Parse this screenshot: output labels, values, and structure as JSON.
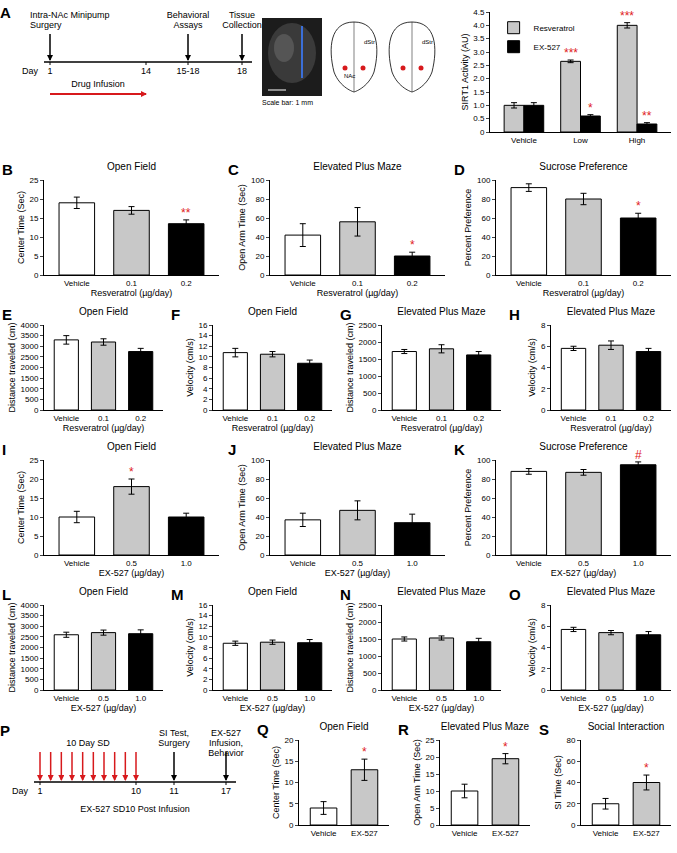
{
  "chart_data": [
    {
      "type": "bar",
      "y_label": "SIRT1 Activity (AU)",
      "categories": [
        "Vehicle",
        "Low",
        "High"
      ],
      "series": [
        {
          "name": "Resveratrol",
          "color": "#c8c8c8",
          "values": [
            1.0,
            2.65,
            4.0
          ],
          "errors": [
            0.1,
            0.05,
            0.1
          ]
        },
        {
          "name": "EX-527",
          "color": "#000000",
          "values": [
            1.0,
            0.6,
            0.3
          ],
          "errors": [
            0.1,
            0.05,
            0.05
          ]
        }
      ],
      "legend": "top-left",
      "ylim": [
        0,
        4.5
      ],
      "yticks": [
        0,
        0.5,
        {
          "value": 1,
          "label": "1.0"
        },
        1.5,
        {
          "value": 2,
          "label": "2.0"
        },
        2.5,
        {
          "value": 3,
          "label": "3.0"
        },
        3.5,
        {
          "value": 4,
          "label": "4.0"
        },
        4.5
      ],
      "annotations": [
        {
          "series": "Resveratrol",
          "category": "Low",
          "text": "***"
        },
        {
          "series": "Resveratrol",
          "category": "High",
          "text": "***"
        },
        {
          "series": "EX-527",
          "category": "Low",
          "text": "*"
        },
        {
          "series": "EX-527",
          "category": "High",
          "text": "**"
        }
      ]
    },
    {
      "panel": "B",
      "type": "bar",
      "title": "Open Field",
      "y_label": "Center Time (Sec)",
      "x_label": "Resveratrol (µg/day)",
      "categories": [
        "Vehicle",
        "0.1",
        "0.2"
      ],
      "values": [
        19,
        17,
        13.5
      ],
      "errors": [
        1.5,
        1,
        1
      ],
      "colors": [
        "#ffffff",
        "#c8c8c8",
        "#000000"
      ],
      "ylim": [
        0,
        25
      ],
      "yticks": [
        0,
        5,
        10,
        15,
        20,
        25
      ],
      "annotations": [
        {
          "category": "0.2",
          "text": "**"
        }
      ]
    },
    {
      "panel": "C",
      "type": "bar",
      "title": "Elevated Plus Maze",
      "y_label": "Open Arm Time (Sec)",
      "x_label": "Resveratrol (µg/day)",
      "categories": [
        "Vehicle",
        "0.1",
        "0.2"
      ],
      "values": [
        42,
        56,
        20
      ],
      "errors": [
        12,
        15,
        4
      ],
      "colors": [
        "#ffffff",
        "#c8c8c8",
        "#000000"
      ],
      "ylim": [
        0,
        100
      ],
      "yticks": [
        0,
        20,
        40,
        60,
        80,
        100
      ],
      "annotations": [
        {
          "category": "0.2",
          "text": "*"
        }
      ]
    },
    {
      "panel": "D",
      "type": "bar",
      "title": "Sucrose Preference",
      "y_label": "Percent Preference",
      "x_label": "Resveratrol (µg/day)",
      "categories": [
        "Vehicle",
        "0.1",
        "0.2"
      ],
      "values": [
        92,
        80,
        60
      ],
      "errors": [
        4,
        6,
        5
      ],
      "colors": [
        "#ffffff",
        "#c8c8c8",
        "#000000"
      ],
      "ylim": [
        0,
        100
      ],
      "yticks": [
        0,
        20,
        40,
        60,
        80,
        100
      ],
      "annotations": [
        {
          "category": "0.2",
          "text": "*"
        }
      ]
    },
    {
      "panel": "E",
      "type": "bar",
      "title": "Open Field",
      "y_label": "Distance traveled (cm)",
      "x_label": "Resveratrol (µg/day)",
      "categories": [
        "Vehicle",
        "0.1",
        "0.2"
      ],
      "values": [
        3300,
        3200,
        2750
      ],
      "errors": [
        200,
        150,
        150
      ],
      "colors": [
        "#ffffff",
        "#c8c8c8",
        "#000000"
      ],
      "ylim": [
        0,
        4000
      ],
      "yticks": [
        0,
        500,
        1000,
        1500,
        2000,
        2500,
        3000,
        3500,
        4000
      ]
    },
    {
      "panel": "F",
      "type": "bar",
      "title": "Open Field",
      "y_label": "Velocity (cm/s)",
      "x_label": "Resveratrol (µg/day)",
      "categories": [
        "Vehicle",
        "0.1",
        "0.2"
      ],
      "values": [
        10.8,
        10.5,
        8.8
      ],
      "errors": [
        0.8,
        0.5,
        0.6
      ],
      "colors": [
        "#ffffff",
        "#c8c8c8",
        "#000000"
      ],
      "ylim": [
        0,
        16
      ],
      "yticks": [
        0,
        2,
        4,
        6,
        8,
        10,
        12,
        14,
        16
      ]
    },
    {
      "panel": "G",
      "type": "bar",
      "title": "Elevated Plus Maze",
      "y_label": "Distance traveled (cm)",
      "x_label": "Resveratrol (µg/day)",
      "categories": [
        "Vehicle",
        "0.1",
        "0.2"
      ],
      "values": [
        1720,
        1800,
        1620
      ],
      "errors": [
        60,
        120,
        100
      ],
      "colors": [
        "#ffffff",
        "#c8c8c8",
        "#000000"
      ],
      "ylim": [
        0,
        2500
      ],
      "yticks": [
        0,
        500,
        1000,
        1500,
        2000,
        2500
      ]
    },
    {
      "panel": "H",
      "type": "bar",
      "title": "Elevated Plus Maze",
      "y_label": "Velocity (cm/s)",
      "x_label": "Resveratrol (µg/day)",
      "categories": [
        "Vehicle",
        "0.1",
        "0.2"
      ],
      "values": [
        5.8,
        6.1,
        5.5
      ],
      "errors": [
        0.2,
        0.4,
        0.3
      ],
      "colors": [
        "#ffffff",
        "#c8c8c8",
        "#000000"
      ],
      "ylim": [
        0,
        8
      ],
      "yticks": [
        0,
        2,
        4,
        6,
        8
      ]
    },
    {
      "panel": "I",
      "type": "bar",
      "title": "Open Field",
      "y_label": "Center Time (Sec)",
      "x_label": "EX-527 (µg/day)",
      "categories": [
        "Vehicle",
        "0.5",
        "1.0"
      ],
      "values": [
        10,
        18,
        10
      ],
      "errors": [
        1.5,
        2,
        1
      ],
      "colors": [
        "#ffffff",
        "#c8c8c8",
        "#000000"
      ],
      "ylim": [
        0,
        25
      ],
      "yticks": [
        0,
        5,
        10,
        15,
        20,
        25
      ],
      "annotations": [
        {
          "category": "0.5",
          "text": "*"
        }
      ]
    },
    {
      "panel": "J",
      "type": "bar",
      "title": "Elevated Plus Maze",
      "y_label": "Open Arm Time (Sec)",
      "x_label": "EX-527 (µg/day)",
      "categories": [
        "Vehicle",
        "0.5",
        "1.0"
      ],
      "values": [
        37,
        47,
        34
      ],
      "errors": [
        7,
        10,
        9
      ],
      "colors": [
        "#ffffff",
        "#c8c8c8",
        "#000000"
      ],
      "ylim": [
        0,
        100
      ],
      "yticks": [
        0,
        20,
        40,
        60,
        80,
        100
      ]
    },
    {
      "panel": "K",
      "type": "bar",
      "title": "Sucrose Preference",
      "y_label": "Percent Preference",
      "x_label": "EX-527 (µg/day)",
      "categories": [
        "Vehicle",
        "0.5",
        "1.0"
      ],
      "values": [
        88,
        87,
        95
      ],
      "errors": [
        3,
        3,
        3
      ],
      "colors": [
        "#ffffff",
        "#c8c8c8",
        "#000000"
      ],
      "ylim": [
        0,
        100
      ],
      "yticks": [
        0,
        20,
        40,
        60,
        80,
        100
      ],
      "annotations": [
        {
          "category": "1.0",
          "text": "#"
        }
      ]
    },
    {
      "panel": "L",
      "type": "bar",
      "title": "Open Field",
      "y_label": "Distance traveled (cm)",
      "x_label": "EX-527 (µg/day)",
      "categories": [
        "Vehicle",
        "0.5",
        "1.0"
      ],
      "values": [
        2600,
        2700,
        2650
      ],
      "errors": [
        120,
        120,
        180
      ],
      "colors": [
        "#ffffff",
        "#c8c8c8",
        "#000000"
      ],
      "ylim": [
        0,
        4000
      ],
      "yticks": [
        0,
        500,
        1000,
        1500,
        2000,
        2500,
        3000,
        3500,
        4000
      ]
    },
    {
      "panel": "M",
      "type": "bar",
      "title": "Open Field",
      "y_label": "Velocity (cm/s)",
      "x_label": "EX-527 (µg/day)",
      "categories": [
        "Vehicle",
        "0.5",
        "1.0"
      ],
      "values": [
        8.8,
        9.0,
        8.9
      ],
      "errors": [
        0.4,
        0.4,
        0.6
      ],
      "colors": [
        "#ffffff",
        "#c8c8c8",
        "#000000"
      ],
      "ylim": [
        0,
        16
      ],
      "yticks": [
        0,
        2,
        4,
        6,
        8,
        10,
        12,
        14,
        16
      ]
    },
    {
      "panel": "N",
      "type": "bar",
      "title": "Elevated Plus Maze",
      "y_label": "Distance traveled (cm)",
      "x_label": "EX-527 (µg/day)",
      "categories": [
        "Vehicle",
        "0.5",
        "1.0"
      ],
      "values": [
        1500,
        1530,
        1420
      ],
      "errors": [
        60,
        60,
        100
      ],
      "colors": [
        "#ffffff",
        "#c8c8c8",
        "#000000"
      ],
      "ylim": [
        0,
        2500
      ],
      "yticks": [
        0,
        500,
        1000,
        1500,
        2000,
        2500
      ]
    },
    {
      "panel": "O",
      "type": "bar",
      "title": "Elevated Plus Maze",
      "y_label": "Velocity (cm/s)",
      "x_label": "EX-527 (µg/day)",
      "categories": [
        "Vehicle",
        "0.5",
        "1.0"
      ],
      "values": [
        5.7,
        5.4,
        5.2
      ],
      "errors": [
        0.2,
        0.2,
        0.3
      ],
      "colors": [
        "#ffffff",
        "#c8c8c8",
        "#000000"
      ],
      "ylim": [
        0,
        8
      ],
      "yticks": [
        0,
        2,
        4,
        6,
        8
      ]
    },
    {
      "panel": "Q",
      "type": "bar",
      "title": "Open Field",
      "y_label": "Center Time (Sec)",
      "categories": [
        "Vehicle",
        "EX-527"
      ],
      "values": [
        4,
        13
      ],
      "errors": [
        1.5,
        2.5
      ],
      "colors": [
        "#ffffff",
        "#c8c8c8"
      ],
      "ylim": [
        0,
        20
      ],
      "yticks": [
        0,
        5,
        10,
        15,
        20
      ],
      "annotations": [
        {
          "category": "EX-527",
          "text": "*"
        }
      ]
    },
    {
      "panel": "R",
      "type": "bar",
      "title": "Elevated Plus Maze",
      "y_label": "Open Arm Time (Sec)",
      "categories": [
        "Vehicle",
        "EX-527"
      ],
      "values": [
        10,
        19.5
      ],
      "errors": [
        2,
        1.5
      ],
      "colors": [
        "#ffffff",
        "#c8c8c8"
      ],
      "ylim": [
        0,
        25
      ],
      "yticks": [
        0,
        5,
        10,
        15,
        20,
        25
      ],
      "annotations": [
        {
          "category": "EX-527",
          "text": "*"
        }
      ]
    },
    {
      "panel": "S",
      "type": "bar",
      "title": "Social Interaction",
      "y_label": "SI Time (Sec)",
      "categories": [
        "Vehicle",
        "EX-527"
      ],
      "values": [
        20,
        40
      ],
      "errors": [
        5,
        7
      ],
      "colors": [
        "#ffffff",
        "#c8c8c8"
      ],
      "ylim": [
        0,
        80
      ],
      "yticks": [
        0,
        20,
        40,
        60,
        80
      ],
      "annotations": [
        {
          "category": "EX-527",
          "text": "*"
        }
      ]
    }
  ],
  "timelines": [
    {
      "panel": "A",
      "axis_label": "Day",
      "ticks": [
        "1",
        "14",
        "15-18",
        "18"
      ],
      "events": [
        {
          "text": "Intra-NAc Minipump Surgery",
          "day": "1"
        },
        {
          "text": "Behavioral Assays",
          "day": "15-18"
        },
        {
          "text": "Tissue Collection",
          "day": "18"
        }
      ],
      "infusion": {
        "text": "Drug Infusion",
        "from": "1",
        "to": "14"
      }
    },
    {
      "panel": "P",
      "axis_label": "Day",
      "ticks": [
        "1",
        "10",
        "11",
        "17"
      ],
      "events": [
        {
          "text": "SI Test, Surgery",
          "day": "11"
        },
        {
          "text": "EX-527 Infusion, Behavior",
          "day": "17"
        }
      ],
      "stress": {
        "text": "10 Day SD",
        "from": "1",
        "to": "10",
        "count": 10
      },
      "caption": "EX-527 SD10 Post Infusion"
    }
  ],
  "histology": {
    "scale_bar": "Scale bar: 1 mm",
    "atlas_labels": [
      [
        "dStr",
        "NAc"
      ],
      [
        "dStr"
      ]
    ]
  }
}
